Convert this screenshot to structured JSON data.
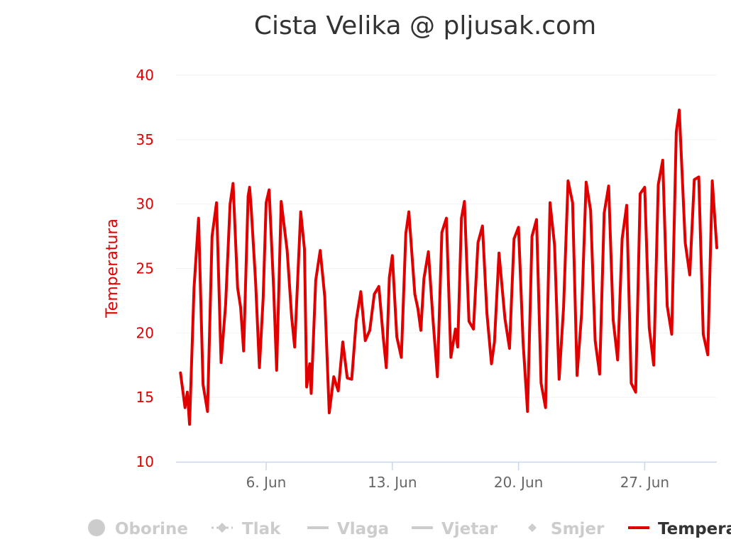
{
  "chart_data": {
    "type": "line",
    "title": "Cista Velika @ pljusak.com",
    "ylabel": "Temperatura",
    "ylim": [
      10,
      40
    ],
    "y_ticks": [
      "10",
      "15",
      "20",
      "25",
      "30",
      "35",
      "40"
    ],
    "xlim": [
      "2025-06-01",
      "2025-07-01"
    ],
    "x_ticks": [
      {
        "date": "2025-06-06",
        "label": "6. Jun"
      },
      {
        "date": "2025-06-13",
        "label": "13. Jun"
      },
      {
        "date": "2025-06-20",
        "label": "20. Jun"
      },
      {
        "date": "2025-06-27",
        "label": "27. Jun"
      }
    ],
    "grid": true,
    "series": [
      {
        "name": "Temperatura",
        "color": "#e00000",
        "points": [
          [
            "2025-06-01T06:00",
            16.9
          ],
          [
            "2025-06-01T12:00",
            14.2
          ],
          [
            "2025-06-01T15:00",
            15.4
          ],
          [
            "2025-06-01T18:00",
            12.9
          ],
          [
            "2025-06-02T00:00",
            23.5
          ],
          [
            "2025-06-02T06:00",
            28.9
          ],
          [
            "2025-06-02T12:00",
            16.0
          ],
          [
            "2025-06-02T18:00",
            13.9
          ],
          [
            "2025-06-03T00:00",
            27.5
          ],
          [
            "2025-06-03T06:00",
            30.1
          ],
          [
            "2025-06-03T12:00",
            17.7
          ],
          [
            "2025-06-03T18:00",
            22.2
          ],
          [
            "2025-06-04T00:00",
            30.0
          ],
          [
            "2025-06-04T04:00",
            31.6
          ],
          [
            "2025-06-04T10:00",
            23.5
          ],
          [
            "2025-06-04T14:00",
            22.0
          ],
          [
            "2025-06-04T18:00",
            18.6
          ],
          [
            "2025-06-05T00:00",
            30.6
          ],
          [
            "2025-06-05T02:00",
            31.3
          ],
          [
            "2025-06-05T04:00",
            29.8
          ],
          [
            "2025-06-05T10:00",
            23.9
          ],
          [
            "2025-06-05T15:00",
            17.3
          ],
          [
            "2025-06-05T20:00",
            22.7
          ],
          [
            "2025-06-06T00:00",
            30.1
          ],
          [
            "2025-06-06T04:00",
            31.1
          ],
          [
            "2025-06-06T10:00",
            23.4
          ],
          [
            "2025-06-06T14:00",
            17.1
          ],
          [
            "2025-06-06T20:00",
            30.2
          ],
          [
            "2025-06-07T04:00",
            26.4
          ],
          [
            "2025-06-07T10:00",
            21.2
          ],
          [
            "2025-06-07T14:00",
            18.9
          ],
          [
            "2025-06-07T22:00",
            29.4
          ],
          [
            "2025-06-08T03:00",
            26.5
          ],
          [
            "2025-06-08T06:00",
            15.8
          ],
          [
            "2025-06-08T10:00",
            17.6
          ],
          [
            "2025-06-08T12:00",
            15.3
          ],
          [
            "2025-06-08T18:00",
            24.1
          ],
          [
            "2025-06-09T00:00",
            26.4
          ],
          [
            "2025-06-09T06:00",
            22.8
          ],
          [
            "2025-06-09T12:00",
            13.8
          ],
          [
            "2025-06-09T18:00",
            16.6
          ],
          [
            "2025-06-10T00:00",
            15.5
          ],
          [
            "2025-06-10T06:00",
            19.3
          ],
          [
            "2025-06-10T12:00",
            16.5
          ],
          [
            "2025-06-10T18:00",
            16.4
          ],
          [
            "2025-06-11T00:00",
            21.0
          ],
          [
            "2025-06-11T06:00",
            23.2
          ],
          [
            "2025-06-11T12:00",
            19.4
          ],
          [
            "2025-06-11T18:00",
            20.2
          ],
          [
            "2025-06-12T00:00",
            23.0
          ],
          [
            "2025-06-12T06:00",
            23.6
          ],
          [
            "2025-06-12T12:00",
            19.6
          ],
          [
            "2025-06-12T16:00",
            17.3
          ],
          [
            "2025-06-12T20:00",
            24.3
          ],
          [
            "2025-06-13T00:00",
            26.0
          ],
          [
            "2025-06-13T06:00",
            19.7
          ],
          [
            "2025-06-13T12:00",
            18.1
          ],
          [
            "2025-06-13T18:00",
            27.7
          ],
          [
            "2025-06-13T22:00",
            29.4
          ],
          [
            "2025-06-14T06:00",
            23.0
          ],
          [
            "2025-06-14T10:00",
            21.9
          ],
          [
            "2025-06-14T14:00",
            20.2
          ],
          [
            "2025-06-14T18:00",
            24.2
          ],
          [
            "2025-06-15T00:00",
            26.3
          ],
          [
            "2025-06-15T06:00",
            21.1
          ],
          [
            "2025-06-15T12:00",
            16.6
          ],
          [
            "2025-06-15T18:00",
            27.8
          ],
          [
            "2025-06-16T00:00",
            28.9
          ],
          [
            "2025-06-16T06:00",
            18.1
          ],
          [
            "2025-06-16T12:00",
            20.3
          ],
          [
            "2025-06-16T15:00",
            18.9
          ],
          [
            "2025-06-16T20:00",
            28.9
          ],
          [
            "2025-06-17T00:00",
            30.2
          ],
          [
            "2025-06-17T06:00",
            20.9
          ],
          [
            "2025-06-17T12:00",
            20.3
          ],
          [
            "2025-06-17T18:00",
            27.0
          ],
          [
            "2025-06-18T00:00",
            28.3
          ],
          [
            "2025-06-18T06:00",
            21.5
          ],
          [
            "2025-06-18T12:00",
            17.6
          ],
          [
            "2025-06-18T16:00",
            19.3
          ],
          [
            "2025-06-18T22:00",
            26.2
          ],
          [
            "2025-06-19T06:00",
            21.1
          ],
          [
            "2025-06-19T12:00",
            18.8
          ],
          [
            "2025-06-19T18:00",
            27.3
          ],
          [
            "2025-06-20T00:00",
            28.2
          ],
          [
            "2025-06-20T06:00",
            19.3
          ],
          [
            "2025-06-20T12:00",
            13.9
          ],
          [
            "2025-06-20T18:00",
            27.5
          ],
          [
            "2025-06-21T00:00",
            28.8
          ],
          [
            "2025-06-21T06:00",
            16.1
          ],
          [
            "2025-06-21T12:00",
            14.2
          ],
          [
            "2025-06-21T18:00",
            30.1
          ],
          [
            "2025-06-22T00:00",
            26.8
          ],
          [
            "2025-06-22T06:00",
            16.4
          ],
          [
            "2025-06-22T12:00",
            22.0
          ],
          [
            "2025-06-22T18:00",
            31.8
          ],
          [
            "2025-06-23T00:00",
            30.1
          ],
          [
            "2025-06-23T06:00",
            16.7
          ],
          [
            "2025-06-23T12:00",
            21.5
          ],
          [
            "2025-06-23T18:00",
            31.7
          ],
          [
            "2025-06-24T00:00",
            29.5
          ],
          [
            "2025-06-24T06:00",
            19.4
          ],
          [
            "2025-06-24T12:00",
            16.8
          ],
          [
            "2025-06-24T18:00",
            29.3
          ],
          [
            "2025-06-25T00:00",
            31.4
          ],
          [
            "2025-06-25T06:00",
            21.0
          ],
          [
            "2025-06-25T12:00",
            17.9
          ],
          [
            "2025-06-25T18:00",
            27.3
          ],
          [
            "2025-06-26T00:00",
            29.9
          ],
          [
            "2025-06-26T06:00",
            16.1
          ],
          [
            "2025-06-26T12:00",
            15.4
          ],
          [
            "2025-06-26T18:00",
            30.8
          ],
          [
            "2025-06-27T00:00",
            31.3
          ],
          [
            "2025-06-27T06:00",
            20.4
          ],
          [
            "2025-06-27T12:00",
            17.5
          ],
          [
            "2025-06-27T18:00",
            31.5
          ],
          [
            "2025-06-28T00:00",
            33.4
          ],
          [
            "2025-06-28T06:00",
            22.1
          ],
          [
            "2025-06-28T12:00",
            19.9
          ],
          [
            "2025-06-28T18:00",
            35.6
          ],
          [
            "2025-06-28T22:00",
            37.3
          ],
          [
            "2025-06-29T06:00",
            27.0
          ],
          [
            "2025-06-29T12:00",
            24.5
          ],
          [
            "2025-06-29T18:00",
            31.9
          ],
          [
            "2025-06-30T00:00",
            32.1
          ],
          [
            "2025-06-30T06:00",
            19.9
          ],
          [
            "2025-06-30T12:00",
            18.3
          ],
          [
            "2025-06-30T18:00",
            31.8
          ],
          [
            "2025-07-01T00:00",
            26.6
          ]
        ]
      }
    ]
  },
  "legend": {
    "items": [
      {
        "key": "oborine",
        "label": "Oborine",
        "symbol": "circle",
        "color": "#cccccc",
        "active": false
      },
      {
        "key": "tlak",
        "label": "Tlak",
        "symbol": "dash-diamond",
        "color": "#cccccc",
        "active": false
      },
      {
        "key": "vlaga",
        "label": "Vlaga",
        "symbol": "line",
        "color": "#cccccc",
        "active": false
      },
      {
        "key": "vjetar",
        "label": "Vjetar",
        "symbol": "line",
        "color": "#cccccc",
        "active": false
      },
      {
        "key": "smjer",
        "label": "Smjer",
        "symbol": "diamond",
        "color": "#cccccc",
        "active": false
      },
      {
        "key": "temperatura",
        "label": "Temperatura",
        "symbol": "line",
        "color": "#e00000",
        "active": true
      }
    ]
  }
}
